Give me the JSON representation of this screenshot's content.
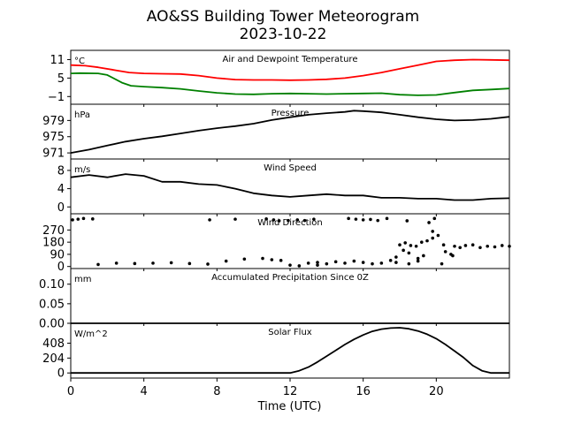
{
  "figure": {
    "title": "AO&SS Building Tower Meteorogram",
    "date": "2023-10-22",
    "xlabel": "Time (UTC)",
    "xticks": [
      "0",
      "4",
      "8",
      "12",
      "16",
      "20"
    ]
  },
  "colors": {
    "temperature": "#ff0000",
    "dewpoint": "#008000",
    "default": "#000000"
  },
  "chart_data": [
    {
      "type": "line",
      "title": "Air and Dewpoint Temperature",
      "unit": "°C",
      "xlim": [
        0,
        24
      ],
      "ylim": [
        -3.5,
        14
      ],
      "yticks": [
        11,
        5,
        -1
      ],
      "grid": false,
      "series": [
        {
          "key": "temperature",
          "x": [
            0,
            0.8,
            1.5,
            2.5,
            3.2,
            4,
            5,
            6,
            7,
            8,
            9,
            10,
            11,
            12,
            13,
            14,
            15,
            16,
            17,
            18,
            19,
            19.5,
            20,
            21,
            22,
            23,
            24
          ],
          "y": [
            9.2,
            9.0,
            8.5,
            7.5,
            6.8,
            6.5,
            6.4,
            6.3,
            5.8,
            5.0,
            4.5,
            4.4,
            4.4,
            4.3,
            4.4,
            4.6,
            5.0,
            5.8,
            6.8,
            8.0,
            9.2,
            9.8,
            10.4,
            10.8,
            11.0,
            10.9,
            10.8
          ]
        },
        {
          "key": "dewpoint",
          "x": [
            0,
            0.5,
            1.5,
            2.0,
            2.8,
            3.3,
            4,
            5,
            6,
            7,
            8,
            9,
            10,
            11,
            12,
            13,
            14,
            15,
            16,
            17,
            18,
            19,
            20,
            21,
            22,
            23,
            24
          ],
          "y": [
            6.5,
            6.6,
            6.5,
            6.0,
            3.5,
            2.5,
            2.2,
            1.9,
            1.5,
            0.8,
            0.2,
            -0.2,
            -0.3,
            -0.1,
            0.0,
            -0.1,
            -0.2,
            -0.1,
            0.0,
            0.1,
            -0.4,
            -0.6,
            -0.5,
            0.3,
            1.0,
            1.3,
            1.6
          ]
        }
      ]
    },
    {
      "type": "line",
      "title": "Pressure",
      "unit": "hPa",
      "xlim": [
        0,
        24
      ],
      "ylim": [
        969.5,
        983
      ],
      "yticks": [
        979,
        975,
        971
      ],
      "grid": false,
      "series": [
        {
          "key": "default",
          "x": [
            0,
            1,
            2,
            3,
            4,
            5,
            6,
            7,
            8,
            9,
            10,
            11,
            12,
            13,
            14,
            15,
            15.5,
            16,
            17,
            18,
            19,
            20,
            21,
            22,
            23,
            24
          ],
          "y": [
            971.0,
            971.8,
            972.8,
            973.8,
            974.5,
            975.1,
            975.8,
            976.5,
            977.1,
            977.6,
            978.2,
            979.1,
            979.8,
            980.4,
            980.8,
            981.1,
            981.4,
            981.3,
            981.0,
            980.4,
            979.8,
            979.3,
            979.0,
            979.1,
            979.4,
            979.9
          ]
        }
      ]
    },
    {
      "type": "line",
      "title": "Wind Speed",
      "unit": "m/s",
      "xlim": [
        0,
        24
      ],
      "ylim": [
        -1.5,
        10.5
      ],
      "yticks": [
        8,
        4,
        0
      ],
      "grid": false,
      "series": [
        {
          "key": "default",
          "x": [
            0,
            1,
            2,
            3,
            4,
            5,
            6,
            7,
            8,
            9,
            10,
            11,
            12,
            13,
            14,
            15,
            16,
            17,
            18,
            19,
            20,
            21,
            22,
            23,
            24
          ],
          "y": [
            6.5,
            7.0,
            6.5,
            7.2,
            6.8,
            5.5,
            5.5,
            5.0,
            4.8,
            4.0,
            3.0,
            2.5,
            2.2,
            2.5,
            2.8,
            2.5,
            2.5,
            2.0,
            2.0,
            1.8,
            1.8,
            1.5,
            1.5,
            1.8,
            1.9
          ]
        }
      ]
    },
    {
      "type": "scatter",
      "title": "Wind Direction",
      "xlim": [
        0,
        24
      ],
      "ylim": [
        -15,
        390
      ],
      "yticks": [
        270,
        180,
        90,
        0
      ],
      "grid": false,
      "series": [
        {
          "key": "default",
          "x": [
            0.1,
            0.4,
            0.7,
            1.2,
            7.6,
            9.0,
            10.7,
            11.1,
            11.4,
            11.9,
            12.4,
            12.8,
            13.3,
            15.2,
            15.6,
            16.0,
            16.4,
            16.8,
            17.3,
            18.4,
            19.6,
            19.9,
            1.5,
            2.5,
            3.5,
            4.5,
            5.5,
            6.5,
            7.5,
            8.5,
            9.5,
            10.5,
            11.0,
            11.5,
            12.0,
            12.5,
            13.0,
            13.5,
            14.0,
            14.5,
            15.0,
            15.5,
            16.0,
            16.5,
            17.0,
            17.5,
            17.8,
            18.0,
            18.3,
            18.6,
            18.9,
            19.2,
            19.5,
            19.8,
            20.1,
            20.4,
            20.8,
            21.0,
            21.3,
            21.6,
            22.0,
            22.4,
            22.8,
            23.2,
            23.6,
            24.0,
            18.2,
            18.5,
            19.0,
            19.3,
            19.8,
            20.5,
            20.9,
            18.5,
            19.0,
            20.3,
            13.5,
            17.8
          ],
          "y": [
            345,
            350,
            355,
            352,
            345,
            350,
            352,
            345,
            338,
            340,
            345,
            340,
            350,
            355,
            350,
            345,
            348,
            340,
            355,
            338,
            325,
            355,
            15,
            25,
            22,
            25,
            28,
            22,
            18,
            40,
            55,
            60,
            50,
            45,
            10,
            5,
            25,
            30,
            20,
            35,
            25,
            40,
            30,
            20,
            25,
            45,
            70,
            160,
            175,
            155,
            150,
            180,
            190,
            210,
            230,
            160,
            90,
            150,
            140,
            155,
            160,
            140,
            150,
            145,
            155,
            150,
            120,
            100,
            60,
            80,
            260,
            110,
            80,
            20,
            40,
            20,
            10,
            30
          ]
        }
      ]
    },
    {
      "type": "line",
      "title": "Accumulated Precipitation Since 0Z",
      "unit": "mm",
      "xlim": [
        0,
        24
      ],
      "ylim": [
        0,
        0.14
      ],
      "yticks": [
        0.1,
        0.05,
        0.0
      ],
      "yticklabels": [
        "0.10",
        "0.05",
        "0.00"
      ],
      "grid": false,
      "series": [
        {
          "key": "default",
          "x": [
            0,
            24
          ],
          "y": [
            0,
            0
          ]
        }
      ]
    },
    {
      "type": "line",
      "title": "Solar Flux",
      "unit": "W/m^2",
      "xlim": [
        0,
        24
      ],
      "ylim": [
        -70,
        680
      ],
      "yticks": [
        408,
        204,
        0
      ],
      "grid": false,
      "series": [
        {
          "key": "default",
          "x": [
            0,
            12.0,
            12.5,
            13.0,
            13.5,
            14.0,
            14.5,
            15.0,
            15.5,
            16.0,
            16.5,
            17.0,
            17.5,
            18.0,
            18.5,
            19.0,
            19.5,
            20.0,
            20.5,
            21.0,
            21.5,
            22.0,
            22.5,
            23.0,
            24.0
          ],
          "y": [
            0,
            0,
            30,
            80,
            150,
            230,
            310,
            390,
            460,
            520,
            570,
            600,
            615,
            620,
            605,
            575,
            530,
            470,
            390,
            300,
            210,
            100,
            30,
            0,
            0
          ]
        }
      ]
    }
  ]
}
